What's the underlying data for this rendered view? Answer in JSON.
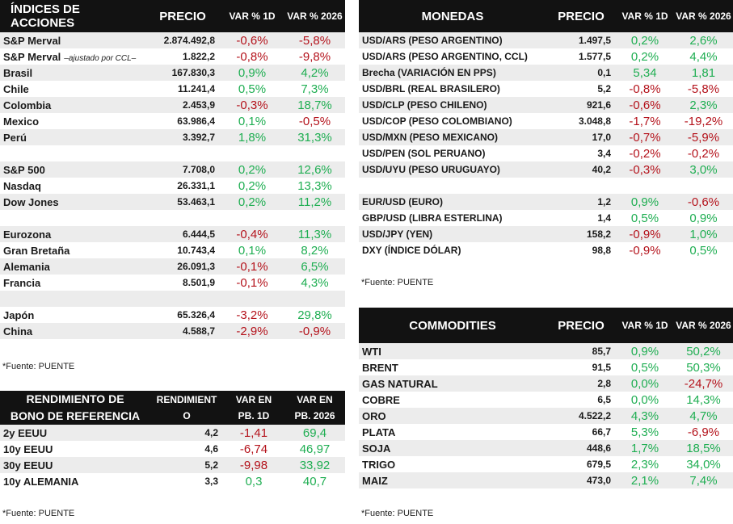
{
  "indices": {
    "headers": {
      "name": "ÍNDICES DE ACCIONES",
      "price": "PRECIO",
      "d1": "VAR % 1D",
      "ytd": "VAR % 2026"
    },
    "rows": [
      {
        "name": "S&P Merval",
        "note": "",
        "price": "2.874.492,8",
        "d1": "-0,6%",
        "ytd": "-5,8%",
        "alt": true
      },
      {
        "name": "S&P Merval",
        "note": "–ajustado por CCL–",
        "price": "1.822,2",
        "d1": "-0,8%",
        "ytd": "-9,8%",
        "alt": false
      },
      {
        "name": "Brasil",
        "note": "",
        "price": "167.830,3",
        "d1": "0,9%",
        "ytd": "4,2%",
        "alt": true
      },
      {
        "name": "Chile",
        "note": "",
        "price": "11.241,4",
        "d1": "0,5%",
        "ytd": "7,3%",
        "alt": false
      },
      {
        "name": "Colombia",
        "note": "",
        "price": "2.453,9",
        "d1": "-0,3%",
        "ytd": "18,7%",
        "alt": true
      },
      {
        "name": "Mexico",
        "note": "",
        "price": "63.986,4",
        "d1": "0,1%",
        "ytd": "-0,5%",
        "alt": false
      },
      {
        "name": "Perú",
        "note": "",
        "price": "3.392,7",
        "d1": "1,8%",
        "ytd": "31,3%",
        "alt": true
      },
      {
        "blank": true,
        "alt": false
      },
      {
        "name": "S&P 500",
        "note": "",
        "price": "7.708,0",
        "d1": "0,2%",
        "ytd": "12,6%",
        "alt": true
      },
      {
        "name": "Nasdaq",
        "note": "",
        "price": "26.331,1",
        "d1": "0,2%",
        "ytd": "13,3%",
        "alt": false
      },
      {
        "name": "Dow Jones",
        "note": "",
        "price": "53.463,1",
        "d1": "0,2%",
        "ytd": "11,2%",
        "alt": true
      },
      {
        "blank": true,
        "alt": false
      },
      {
        "name": "Eurozona",
        "note": "",
        "price": "6.444,5",
        "d1": "-0,4%",
        "ytd": "11,3%",
        "alt": true
      },
      {
        "name": "Gran Bretaña",
        "note": "",
        "price": "10.743,4",
        "d1": "0,1%",
        "ytd": "8,2%",
        "alt": false
      },
      {
        "name": "Alemania",
        "note": "",
        "price": "26.091,3",
        "d1": "-0,1%",
        "ytd": "6,5%",
        "alt": true
      },
      {
        "name": "Francia",
        "note": "",
        "price": "8.501,9",
        "d1": "-0,1%",
        "ytd": "4,3%",
        "alt": false
      },
      {
        "blank": true,
        "alt": true
      },
      {
        "name": "Japón",
        "note": "",
        "price": "65.326,4",
        "d1": "-3,2%",
        "ytd": "29,8%",
        "alt": false
      },
      {
        "name": "China",
        "note": "",
        "price": "4.588,7",
        "d1": "-2,9%",
        "ytd": "-0,9%",
        "alt": true
      }
    ],
    "source": "*Fuente: PUENTE"
  },
  "bonds": {
    "headers": {
      "name1": "RENDIMIENTO DE",
      "name2": "BONO DE REFERENCIA",
      "price1": "RENDIMIENT",
      "price2": "O",
      "d1a": "VAR EN",
      "d1b": "PB. 1D",
      "ytda": "VAR EN",
      "ytdb": "PB. 2026"
    },
    "rows": [
      {
        "name": "2y EEUU",
        "note": "",
        "price": "4,2",
        "d1": "-1,41",
        "ytd": "69,4",
        "alt": true
      },
      {
        "name": "10y EEUU",
        "note": "",
        "price": "4,6",
        "d1": "-6,74",
        "ytd": "46,97",
        "alt": false
      },
      {
        "name": "30y EEUU",
        "note": "",
        "price": "5,2",
        "d1": "-9,98",
        "ytd": "33,92",
        "alt": true
      },
      {
        "name": "10y ALEMANIA",
        "note": "",
        "price": "3,3",
        "d1": "0,3",
        "ytd": "40,7",
        "alt": false
      }
    ],
    "source": "*Fuente: PUENTE"
  },
  "currencies": {
    "headers": {
      "name": "MONEDAS",
      "price": "PRECIO",
      "d1": "VAR % 1D",
      "ytd": "VAR % 2026"
    },
    "rows": [
      {
        "name": "USD/ARS (PESO ARGENTINO)",
        "note": "",
        "price": "1.497,5",
        "d1": "0,2%",
        "ytd": "2,6%",
        "alt": true
      },
      {
        "name": "USD/ARS (PESO ARGENTINO, CCL)",
        "note": "",
        "price": "1.577,5",
        "d1": "0,2%",
        "ytd": "4,4%",
        "alt": false
      },
      {
        "name": "Brecha (VARIACIÓN EN PPS)",
        "note": "",
        "price": "0,1",
        "d1": "5,34",
        "ytd": "1,81",
        "alt": true
      },
      {
        "name": "USD/BRL (REAL BRASILERO)",
        "note": "",
        "price": "5,2",
        "d1": "-0,8%",
        "ytd": "-5,8%",
        "alt": false
      },
      {
        "name": "USD/CLP (PESO CHILENO)",
        "note": "",
        "price": "921,6",
        "d1": "-0,6%",
        "ytd": "2,3%",
        "alt": true
      },
      {
        "name": "USD/COP (PESO COLOMBIANO)",
        "note": "",
        "price": "3.048,8",
        "d1": "-1,7%",
        "ytd": "-19,2%",
        "alt": false
      },
      {
        "name": "USD/MXN (PESO MEXICANO)",
        "note": "",
        "price": "17,0",
        "d1": "-0,7%",
        "ytd": "-5,9%",
        "alt": true
      },
      {
        "name": "USD/PEN (SOL PERUANO)",
        "note": "",
        "price": "3,4",
        "d1": "-0,2%",
        "ytd": "-0,2%",
        "alt": false
      },
      {
        "name": "USD/UYU (PESO URUGUAYO)",
        "note": "",
        "price": "40,2",
        "d1": "-0,3%",
        "ytd": "3,0%",
        "alt": true
      },
      {
        "blank": true,
        "alt": false
      },
      {
        "name": "EUR/USD (EURO)",
        "note": "",
        "price": "1,2",
        "d1": "0,9%",
        "ytd": "-0,6%",
        "alt": true
      },
      {
        "name": "GBP/USD (LIBRA ESTERLINA)",
        "note": "",
        "price": "1,4",
        "d1": "0,5%",
        "ytd": "0,9%",
        "alt": false
      },
      {
        "name": "USD/JPY (YEN)",
        "note": "",
        "price": "158,2",
        "d1": "-0,9%",
        "ytd": "1,0%",
        "alt": true
      },
      {
        "name": "DXY (ÍNDICE DÓLAR)",
        "note": "",
        "price": "98,8",
        "d1": "-0,9%",
        "ytd": "0,5%",
        "alt": false
      }
    ],
    "source": "*Fuente: PUENTE"
  },
  "commodities": {
    "headers": {
      "name": "COMMODITIES",
      "price": "PRECIO",
      "d1": "VAR % 1D",
      "ytd": "VAR % 2026"
    },
    "rows": [
      {
        "name": "WTI",
        "note": "",
        "price": "85,7",
        "d1": "0,9%",
        "ytd": "50,2%",
        "alt": true
      },
      {
        "name": "BRENT",
        "note": "",
        "price": "91,5",
        "d1": "0,5%",
        "ytd": "50,3%",
        "alt": false
      },
      {
        "name": "GAS NATURAL",
        "note": "",
        "price": "2,8",
        "d1": "0,0%",
        "ytd": "-24,7%",
        "alt": true
      },
      {
        "name": "COBRE",
        "note": "",
        "price": "6,5",
        "d1": "0,0%",
        "ytd": "14,3%",
        "alt": false
      },
      {
        "name": "ORO",
        "note": "",
        "price": "4.522,2",
        "d1": "4,3%",
        "ytd": "4,7%",
        "alt": true
      },
      {
        "name": "PLATA",
        "note": "",
        "price": "66,7",
        "d1": "5,3%",
        "ytd": "-6,9%",
        "alt": false
      },
      {
        "name": "SOJA",
        "note": "",
        "price": "448,6",
        "d1": "1,7%",
        "ytd": "18,5%",
        "alt": true
      },
      {
        "name": "TRIGO",
        "note": "",
        "price": "679,5",
        "d1": "2,3%",
        "ytd": "34,0%",
        "alt": false
      },
      {
        "name": "MAIZ",
        "note": "",
        "price": "473,0",
        "d1": "2,1%",
        "ytd": "7,4%",
        "alt": true
      }
    ],
    "source": "*Fuente: PUENTE"
  }
}
